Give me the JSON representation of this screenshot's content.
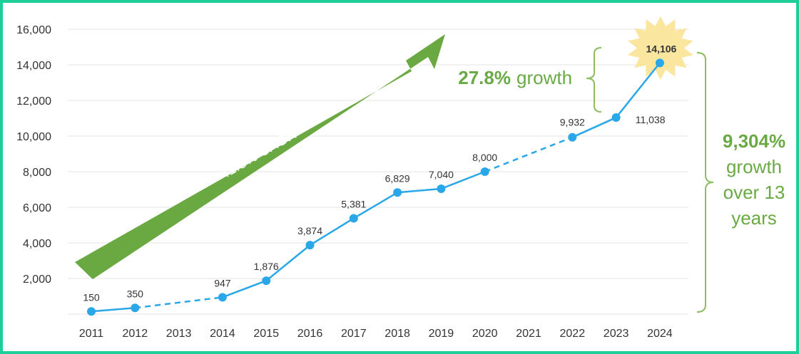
{
  "chart_data": {
    "type": "line",
    "categories": [
      "2011",
      "2012",
      "2013",
      "2014",
      "2015",
      "2016",
      "2017",
      "2018",
      "2019",
      "2020",
      "2021",
      "2022",
      "2023",
      "2024"
    ],
    "series": [
      {
        "values": [
          150,
          350,
          null,
          947,
          1876,
          3874,
          5381,
          6829,
          7040,
          8000,
          null,
          9932,
          11038,
          14106
        ],
        "labels": [
          "150",
          "350",
          "",
          "947",
          "1,876",
          "3,874",
          "5,381",
          "6,829",
          "7,040",
          "8,000",
          "",
          "9,932",
          "11,038",
          "14,106"
        ],
        "color": "#2aa7e8"
      }
    ],
    "ylim": [
      0,
      16000
    ],
    "yticks": [
      2000,
      4000,
      6000,
      8000,
      10000,
      12000,
      14000,
      16000
    ],
    "ytick_labels": [
      "2,000",
      "4,000",
      "6,000",
      "8,000",
      "10,000",
      "12,000",
      "14,000",
      "16,000"
    ],
    "grid": true,
    "annotations": {
      "arrow_label": "41.8% CAGR",
      "recent_growth_value": "27.8%",
      "recent_growth_word": "growth",
      "total_growth_lines": [
        "9,304%",
        "growth",
        "over 13",
        "years"
      ],
      "highlight_point": "14,106"
    },
    "colors": {
      "line": "#2aa7e8",
      "accent_green": "#6aaa45",
      "arrow_green": "#6aa942",
      "star": "#fbe6a0",
      "border": "#1fcf9a"
    }
  }
}
